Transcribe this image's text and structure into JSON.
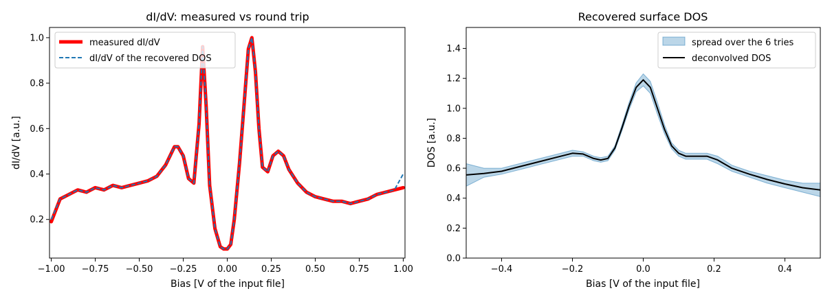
{
  "chart_data": [
    {
      "type": "line",
      "title": "dI/dV: measured vs round trip",
      "xlabel": "Bias [V of the input file]",
      "ylabel": "dI/dV [a.u.]",
      "xlim": [
        -1.01,
        1.01
      ],
      "ylim": [
        0.03,
        1.045
      ],
      "xticks": [
        -1.0,
        -0.75,
        -0.5,
        -0.25,
        0.0,
        0.25,
        0.5,
        0.75,
        1.0
      ],
      "xtick_labels": [
        "−1.00",
        "−0.75",
        "−0.50",
        "−0.25",
        "0.00",
        "0.25",
        "0.50",
        "0.75",
        "1.00"
      ],
      "yticks": [
        0.2,
        0.4,
        0.6,
        0.8,
        1.0
      ],
      "ytick_labels": [
        "0.2",
        "0.4",
        "0.6",
        "0.8",
        "1.0"
      ],
      "legend_position": "top-left",
      "grid": false,
      "series": [
        {
          "name": "measured dI/dV",
          "color": "#ff0000",
          "style": "solid",
          "x": [
            -1.0,
            -0.95,
            -0.9,
            -0.85,
            -0.8,
            -0.75,
            -0.7,
            -0.65,
            -0.6,
            -0.55,
            -0.5,
            -0.45,
            -0.4,
            -0.35,
            -0.3,
            -0.28,
            -0.25,
            -0.22,
            -0.19,
            -0.16,
            -0.14,
            -0.12,
            -0.1,
            -0.07,
            -0.04,
            -0.02,
            0.0,
            0.02,
            0.04,
            0.07,
            0.1,
            0.12,
            0.14,
            0.16,
            0.18,
            0.2,
            0.23,
            0.26,
            0.29,
            0.32,
            0.35,
            0.4,
            0.45,
            0.5,
            0.55,
            0.6,
            0.65,
            0.7,
            0.75,
            0.8,
            0.85,
            0.9,
            0.95,
            1.0
          ],
          "y": [
            0.19,
            0.29,
            0.31,
            0.33,
            0.32,
            0.34,
            0.33,
            0.35,
            0.34,
            0.35,
            0.36,
            0.37,
            0.39,
            0.44,
            0.52,
            0.52,
            0.48,
            0.38,
            0.36,
            0.62,
            0.96,
            0.7,
            0.35,
            0.16,
            0.08,
            0.07,
            0.07,
            0.09,
            0.2,
            0.45,
            0.75,
            0.95,
            1.0,
            0.85,
            0.6,
            0.43,
            0.41,
            0.48,
            0.5,
            0.48,
            0.42,
            0.36,
            0.32,
            0.3,
            0.29,
            0.28,
            0.28,
            0.27,
            0.28,
            0.29,
            0.31,
            0.32,
            0.33,
            0.34
          ]
        },
        {
          "name": "dI/dV of the recovered DOS",
          "color": "#1f77b4",
          "style": "dashed",
          "x": [
            -1.0,
            -0.95,
            -0.9,
            -0.85,
            -0.8,
            -0.75,
            -0.7,
            -0.65,
            -0.6,
            -0.55,
            -0.5,
            -0.45,
            -0.4,
            -0.35,
            -0.3,
            -0.28,
            -0.25,
            -0.22,
            -0.19,
            -0.16,
            -0.14,
            -0.12,
            -0.1,
            -0.07,
            -0.04,
            -0.02,
            0.0,
            0.02,
            0.04,
            0.07,
            0.1,
            0.12,
            0.14,
            0.16,
            0.18,
            0.2,
            0.23,
            0.26,
            0.29,
            0.32,
            0.35,
            0.4,
            0.45,
            0.5,
            0.55,
            0.6,
            0.65,
            0.7,
            0.75,
            0.8,
            0.85,
            0.9,
            0.95,
            1.0
          ],
          "y": [
            0.2,
            0.29,
            0.31,
            0.33,
            0.32,
            0.34,
            0.33,
            0.35,
            0.34,
            0.35,
            0.36,
            0.37,
            0.39,
            0.44,
            0.52,
            0.52,
            0.48,
            0.38,
            0.36,
            0.62,
            0.96,
            0.7,
            0.35,
            0.16,
            0.08,
            0.07,
            0.07,
            0.09,
            0.2,
            0.45,
            0.75,
            0.95,
            1.0,
            0.85,
            0.6,
            0.43,
            0.41,
            0.48,
            0.5,
            0.48,
            0.42,
            0.36,
            0.32,
            0.3,
            0.29,
            0.28,
            0.28,
            0.27,
            0.28,
            0.29,
            0.31,
            0.32,
            0.33,
            0.4
          ]
        }
      ]
    },
    {
      "type": "line",
      "title": "Recovered surface DOS",
      "xlabel": "Bias [V of the input file]",
      "ylabel": "DOS [a.u.]",
      "xlim": [
        -0.5,
        0.5
      ],
      "ylim": [
        0.0,
        1.54
      ],
      "xticks": [
        -0.4,
        -0.2,
        0.0,
        0.2,
        0.4
      ],
      "xtick_labels": [
        "−0.4",
        "−0.2",
        "0.0",
        "0.2",
        "0.4"
      ],
      "yticks": [
        0.0,
        0.2,
        0.4,
        0.6,
        0.8,
        1.0,
        1.2,
        1.4
      ],
      "ytick_labels": [
        "0.0",
        "0.2",
        "0.4",
        "0.6",
        "0.8",
        "1.0",
        "1.2",
        "1.4"
      ],
      "legend_position": "top-right",
      "grid": false,
      "band": {
        "name": "spread over the 6 tries",
        "color": "#1f77b4",
        "opacity": 0.3,
        "x": [
          -0.5,
          -0.45,
          -0.4,
          -0.35,
          -0.3,
          -0.25,
          -0.2,
          -0.17,
          -0.14,
          -0.12,
          -0.1,
          -0.08,
          -0.06,
          -0.04,
          -0.02,
          0.0,
          0.02,
          0.04,
          0.06,
          0.08,
          0.1,
          0.12,
          0.15,
          0.18,
          0.21,
          0.25,
          0.3,
          0.35,
          0.4,
          0.45,
          0.5
        ],
        "lower": [
          0.48,
          0.54,
          0.56,
          0.59,
          0.62,
          0.65,
          0.68,
          0.68,
          0.65,
          0.64,
          0.65,
          0.72,
          0.85,
          0.99,
          1.11,
          1.15,
          1.1,
          0.96,
          0.83,
          0.73,
          0.68,
          0.66,
          0.66,
          0.66,
          0.63,
          0.58,
          0.54,
          0.5,
          0.47,
          0.44,
          0.41
        ],
        "upper": [
          0.63,
          0.6,
          0.6,
          0.63,
          0.66,
          0.69,
          0.72,
          0.71,
          0.68,
          0.67,
          0.68,
          0.75,
          0.89,
          1.04,
          1.17,
          1.23,
          1.18,
          1.04,
          0.89,
          0.77,
          0.72,
          0.7,
          0.7,
          0.7,
          0.68,
          0.62,
          0.58,
          0.55,
          0.52,
          0.5,
          0.5
        ]
      },
      "series": [
        {
          "name": "deconvolved DOS",
          "color": "#000000",
          "style": "solid",
          "x": [
            -0.5,
            -0.45,
            -0.4,
            -0.35,
            -0.3,
            -0.25,
            -0.2,
            -0.17,
            -0.14,
            -0.12,
            -0.1,
            -0.08,
            -0.06,
            -0.04,
            -0.02,
            0.0,
            0.02,
            0.04,
            0.06,
            0.08,
            0.1,
            0.12,
            0.15,
            0.18,
            0.21,
            0.25,
            0.3,
            0.35,
            0.4,
            0.45,
            0.5
          ],
          "y": [
            0.555,
            0.565,
            0.58,
            0.61,
            0.64,
            0.67,
            0.7,
            0.695,
            0.665,
            0.655,
            0.665,
            0.735,
            0.87,
            1.015,
            1.14,
            1.19,
            1.14,
            1.0,
            0.86,
            0.75,
            0.7,
            0.68,
            0.68,
            0.68,
            0.655,
            0.6,
            0.56,
            0.525,
            0.495,
            0.47,
            0.455
          ]
        }
      ]
    }
  ]
}
